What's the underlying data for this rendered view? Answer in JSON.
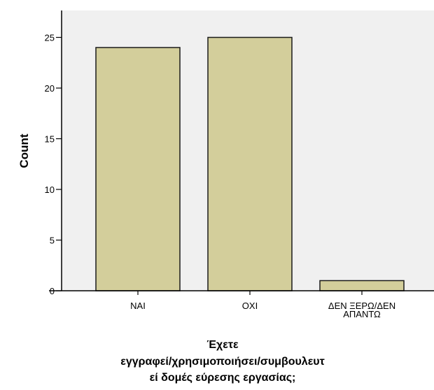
{
  "chart_data": {
    "type": "bar",
    "categories": [
      [
        "ΝΑΙ"
      ],
      [
        "ΟΧΙ"
      ],
      [
        "ΔΕΝ ΞΕΡΩ/ΔΕΝ",
        "ΑΠΑΝΤΩ"
      ]
    ],
    "values": [
      24,
      25,
      1
    ],
    "ylabel": "Count",
    "xlabel": [
      "Έχετε",
      "εγγραφεί/χρησιμοποιήσει/συμβουλευτ",
      "εί δομές εύρεσης εργασίας;"
    ],
    "yticks": [
      0,
      5,
      10,
      15,
      20,
      25
    ],
    "ylim": [
      0,
      27
    ],
    "grid": false,
    "colors": {
      "plot_background": "#f0f0f0",
      "bar_fill": "#d3ce9b",
      "bar_stroke": "#1a1a1a",
      "axis": "#000000"
    }
  }
}
